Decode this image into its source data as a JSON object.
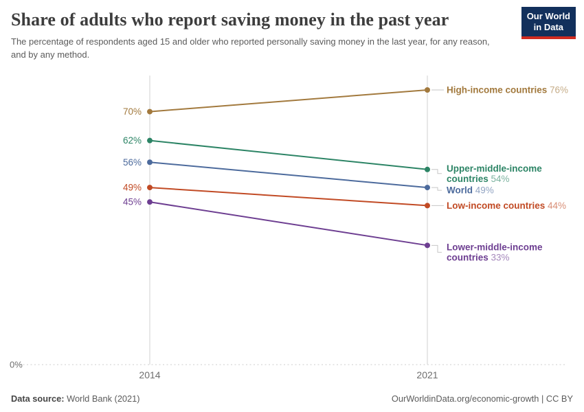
{
  "header": {
    "title": "Share of adults who report saving money in the past year",
    "subtitle": "The percentage of respondents aged 15 and older who reported personally saving money in the last year, for any reason, and by any method.",
    "logo": {
      "line1": "Our World",
      "line2": "in Data",
      "bg_color": "#12305c",
      "accent_color": "#d02b20"
    }
  },
  "chart_data": {
    "type": "line",
    "subtype": "slope",
    "title": "Share of adults who report saving money in the past year",
    "subtitle": "The percentage of respondents aged 15 and older who reported personally saving money in the last year, for any reason, and by any method.",
    "x": [
      2014,
      2021
    ],
    "x_tick_labels": [
      "2014",
      "2021"
    ],
    "ylim": [
      0,
      80
    ],
    "y_baseline_label": "0%",
    "grid": "dotted zero baseline only",
    "legend_position": "right-inline",
    "series": [
      {
        "name": "High-income countries",
        "color": "#a2793d",
        "values": [
          70,
          76
        ],
        "start_label": "70%",
        "end_label": "76%",
        "label_lines": [
          "High-income countries"
        ]
      },
      {
        "name": "Upper-middle-income countries",
        "color": "#2c8465",
        "values": [
          62,
          54
        ],
        "start_label": "62%",
        "end_label": "54%",
        "label_lines": [
          "Upper-middle-income",
          "countries"
        ]
      },
      {
        "name": "World",
        "color": "#4c6a9c",
        "values": [
          56,
          49
        ],
        "start_label": "56%",
        "end_label": "49%",
        "label_lines": [
          "World"
        ]
      },
      {
        "name": "Low-income countries",
        "color": "#c14a24",
        "values": [
          49,
          44
        ],
        "start_label": "49%",
        "end_label": "44%",
        "label_lines": [
          "Low-income countries"
        ]
      },
      {
        "name": "Lower-middle-income countries",
        "color": "#6d3e91",
        "values": [
          45,
          33
        ],
        "start_label": "45%",
        "end_label": "33%",
        "label_lines": [
          "Lower-middle-income",
          "countries"
        ]
      }
    ],
    "axis_color": "#d0d0d0",
    "gridline_color": "#dedede",
    "connector_color": "#c6c6c6",
    "tick_label_color": "#6e6e6e"
  },
  "footer": {
    "source_label": "Data source:",
    "source_value": "World Bank (2021)",
    "link": "OurWorldinData.org/economic-growth",
    "divider": "|",
    "license": "CC BY"
  }
}
